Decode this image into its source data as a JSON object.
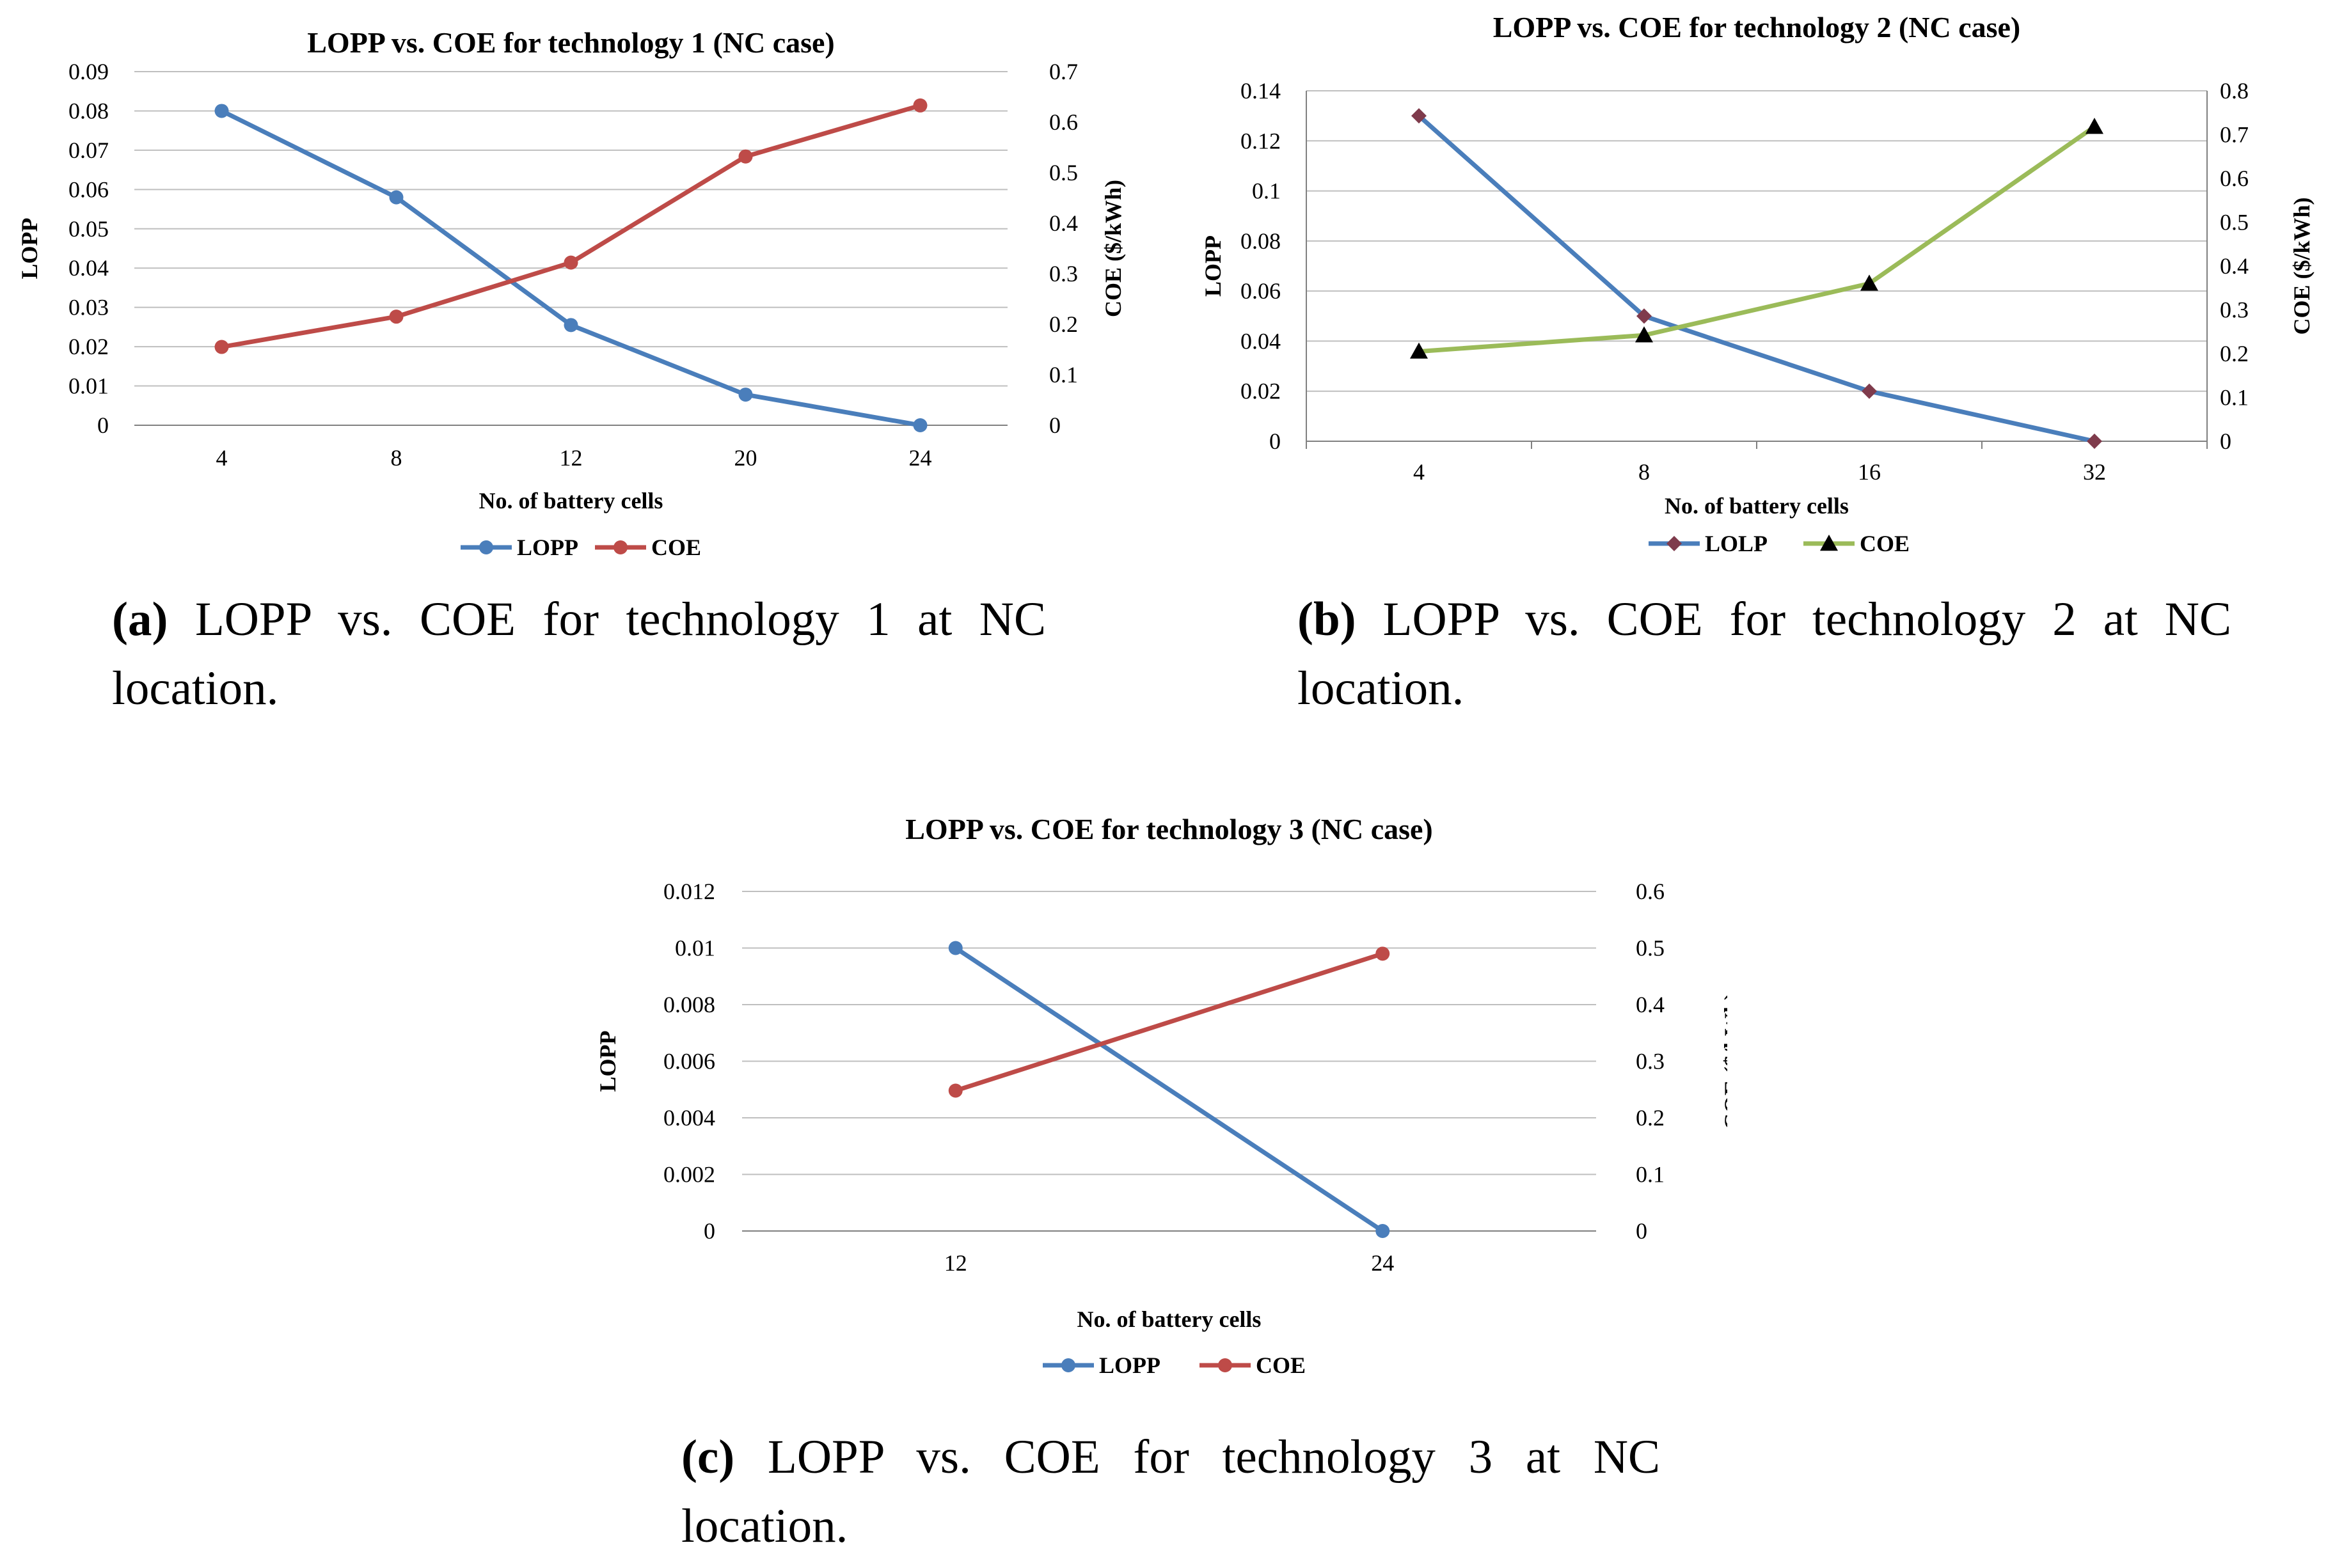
{
  "chart_data": [
    {
      "type": "line",
      "title": "LOPP vs. COE for technology 1 (NC case)",
      "xlabel": "No. of battery cells",
      "ylabel": "LOPP",
      "y2label": "COE ($/kWh)",
      "categories": [
        "4",
        "8",
        "12",
        "20",
        "24"
      ],
      "ylim": [
        0,
        0.09
      ],
      "y2lim": [
        0,
        0.7
      ],
      "yticks": [
        "0",
        "0.01",
        "0.02",
        "0.03",
        "0.04",
        "0.05",
        "0.06",
        "0.07",
        "0.08",
        "0.09"
      ],
      "y2ticks": [
        "0",
        "0.1",
        "0.2",
        "0.3",
        "0.4",
        "0.5",
        "0.6",
        "0.7"
      ],
      "grid": true,
      "legend_position": "bottom",
      "series": [
        {
          "name": "LOPP",
          "axis": "left",
          "values": [
            0.08,
            0.058,
            0.0255,
            0.0078,
            0.0
          ],
          "color": "#4a7ebb",
          "marker": "circle"
        },
        {
          "name": "COE",
          "axis": "right",
          "values": [
            0.155,
            0.215,
            0.322,
            0.532,
            0.633
          ],
          "color": "#be4b48",
          "marker": "circle"
        }
      ]
    },
    {
      "type": "line",
      "title": "LOPP vs. COE for technology 2 (NC case)",
      "xlabel": "No. of battery cells",
      "ylabel": "LOPP",
      "y2label": "COE ($/kWh)",
      "categories": [
        "4",
        "8",
        "16",
        "32"
      ],
      "ylim": [
        0,
        0.14
      ],
      "y2lim": [
        0,
        0.8
      ],
      "yticks": [
        "0",
        "0.02",
        "0.04",
        "0.06",
        "0.08",
        "0.1",
        "0.12",
        "0.14"
      ],
      "y2ticks": [
        "0",
        "0.1",
        "0.2",
        "0.3",
        "0.4",
        "0.5",
        "0.6",
        "0.7",
        "0.8"
      ],
      "grid": true,
      "legend_position": "bottom",
      "series": [
        {
          "name": "LOLP",
          "axis": "left",
          "values": [
            0.13,
            0.05,
            0.02,
            0.0
          ],
          "color": "#4a7ebb",
          "marker": "diamond",
          "marker_color": "#7f3b4c"
        },
        {
          "name": "COE",
          "axis": "right",
          "values": [
            0.205,
            0.242,
            0.36,
            0.718
          ],
          "color": "#9bbb59",
          "marker": "triangle",
          "marker_color": "#000000"
        }
      ]
    },
    {
      "type": "line",
      "title": "LOPP vs. COE for technology 3 (NC case)",
      "xlabel": "No. of battery cells",
      "ylabel": "LOPP",
      "y2label": "COE ($/kWh)",
      "categories": [
        "12",
        "24"
      ],
      "ylim": [
        0,
        0.012
      ],
      "y2lim": [
        0,
        0.6
      ],
      "yticks": [
        "0",
        "0.002",
        "0.004",
        "0.006",
        "0.008",
        "0.01",
        "0.012"
      ],
      "y2ticks": [
        "0",
        "0.1",
        "0.2",
        "0.3",
        "0.4",
        "0.5",
        "0.6"
      ],
      "grid": true,
      "legend_position": "bottom",
      "series": [
        {
          "name": "LOPP",
          "axis": "left",
          "values": [
            0.01,
            0.0
          ],
          "color": "#4a7ebb",
          "marker": "circle"
        },
        {
          "name": "COE",
          "axis": "right",
          "values": [
            0.248,
            0.49
          ],
          "color": "#be4b48",
          "marker": "circle"
        }
      ]
    }
  ],
  "captions": [
    {
      "label": "(a)",
      "text": "LOPP vs.  COE for technology 1 at NC location."
    },
    {
      "label": "(b)",
      "text": "LOPP vs.  COE for technology 2 at NC location."
    },
    {
      "label": "(c)",
      "text": "LOPP vs.  COE for technology 3 at NC location."
    }
  ]
}
